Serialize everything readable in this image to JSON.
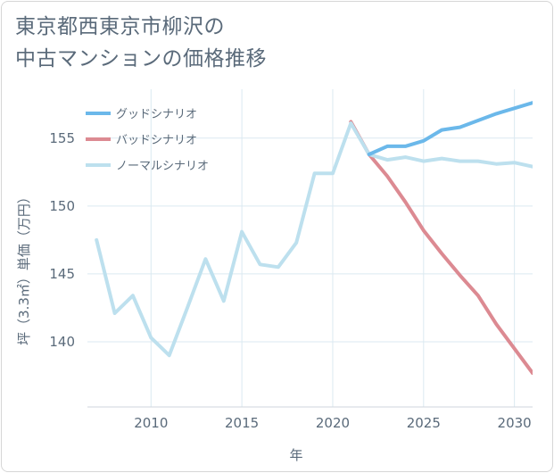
{
  "chart_data": {
    "type": "line",
    "title": "東京都西東京市柳沢の中古マンションの価格推移",
    "title_lines": [
      "東京都西東京市柳沢の",
      "中古マンションの価格推移"
    ],
    "xlabel": "年",
    "ylabel": "坪（3.3㎡）単価（万円）",
    "xlim": [
      2006.5,
      2031
    ],
    "ylim": [
      135.2,
      158.6
    ],
    "x_ticks": [
      2010,
      2015,
      2020,
      2025,
      2030
    ],
    "y_ticks": [
      140,
      145,
      150,
      155
    ],
    "grid": true,
    "legend_position": "top-left",
    "series": [
      {
        "name": "グッドシナリオ",
        "color": "#6bb8ea",
        "x": [
          2022,
          2023,
          2024,
          2025,
          2026,
          2027,
          2028,
          2029,
          2030,
          2031
        ],
        "values": [
          153.8,
          154.4,
          154.4,
          154.8,
          155.6,
          155.8,
          156.3,
          156.8,
          157.2,
          157.6
        ]
      },
      {
        "name": "バッドシナリオ",
        "color": "#dc8a92",
        "x": [
          2021,
          2022,
          2023,
          2024,
          2025,
          2026,
          2027,
          2028,
          2029,
          2030,
          2031
        ],
        "values": [
          156.2,
          153.8,
          152.2,
          150.3,
          148.2,
          146.5,
          144.9,
          143.4,
          141.3,
          139.5,
          137.7
        ]
      },
      {
        "name": "ノーマルシナリオ",
        "color": "#bde0ee",
        "x": [
          2007,
          2008,
          2009,
          2010,
          2011,
          2012,
          2013,
          2014,
          2015,
          2016,
          2017,
          2018,
          2019,
          2020,
          2021,
          2022,
          2023,
          2024,
          2025,
          2026,
          2027,
          2028,
          2029,
          2030,
          2031
        ],
        "values": [
          147.5,
          142.1,
          143.4,
          140.3,
          139.0,
          142.5,
          146.1,
          143.0,
          148.1,
          145.7,
          145.5,
          147.3,
          152.4,
          152.4,
          156.1,
          153.8,
          153.4,
          153.6,
          153.3,
          153.5,
          153.3,
          153.3,
          153.1,
          153.2,
          152.9
        ]
      }
    ]
  }
}
